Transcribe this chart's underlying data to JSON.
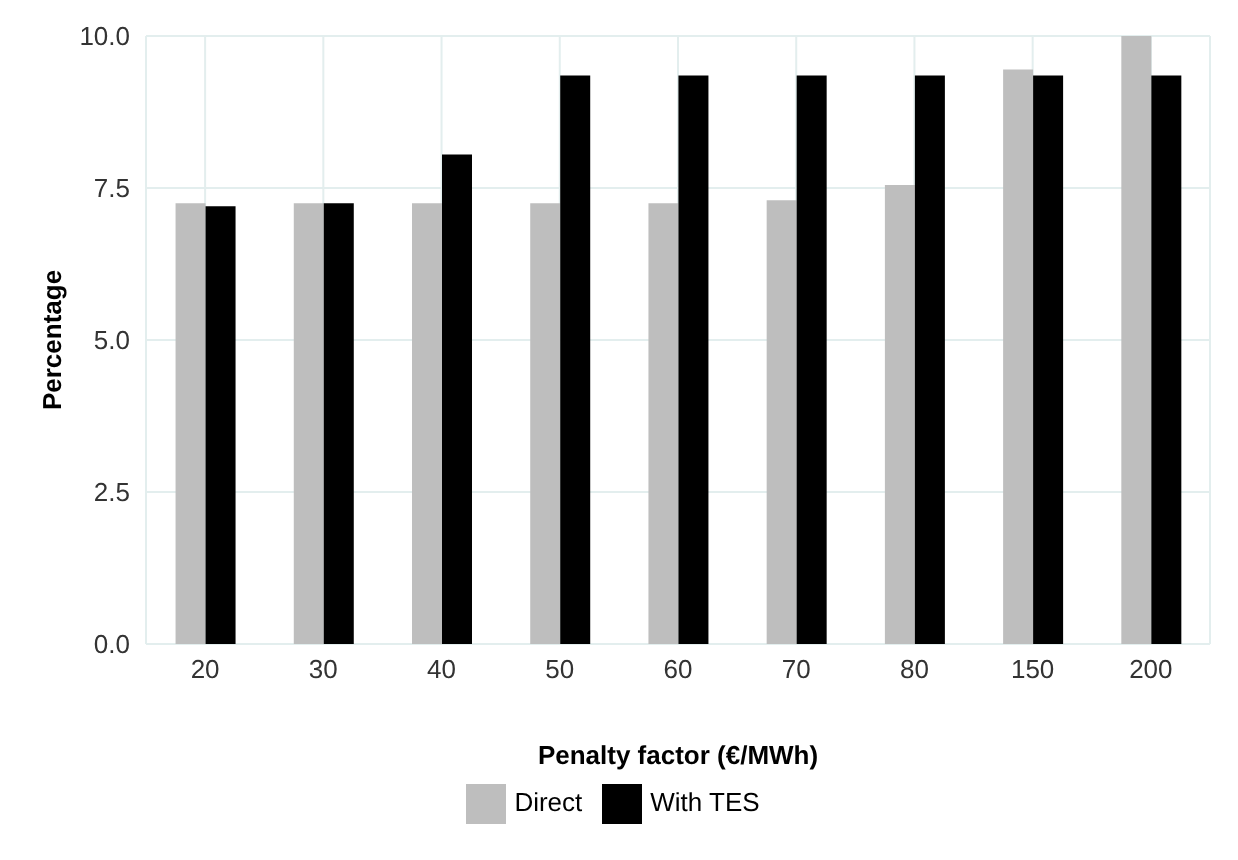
{
  "chart_data": {
    "type": "bar",
    "xlabel": "Penalty factor (€/MWh)",
    "ylabel": "Percentage",
    "categories": [
      "20",
      "30",
      "40",
      "50",
      "60",
      "70",
      "80",
      "150",
      "200"
    ],
    "series": [
      {
        "name": "Direct",
        "color": "#bebebe",
        "values": [
          7.25,
          7.25,
          7.25,
          7.25,
          7.25,
          7.3,
          7.55,
          9.45,
          10.0
        ]
      },
      {
        "name": "With TES",
        "color": "#000000",
        "values": [
          7.2,
          7.25,
          8.05,
          9.35,
          9.35,
          9.35,
          9.35,
          9.35,
          9.35
        ]
      }
    ],
    "ylim": [
      0,
      10
    ],
    "yticks": [
      {
        "value": 0,
        "label": "0.0"
      },
      {
        "value": 2.5,
        "label": "2.5"
      },
      {
        "value": 5,
        "label": "5.0"
      },
      {
        "value": 7.5,
        "label": "7.5"
      },
      {
        "value": 10,
        "label": "10.0"
      }
    ],
    "grid": true,
    "legend": "bottom"
  }
}
